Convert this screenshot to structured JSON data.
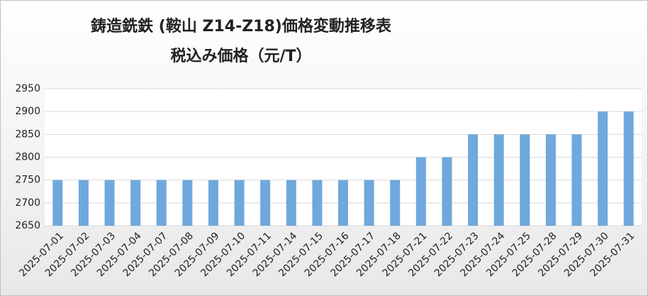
{
  "chart_data": {
    "type": "bar",
    "title": "鋳造銑鉄 (鞍山 Z14-Z18)価格変動推移表",
    "subtitle": "税込み価格（元/T）",
    "categories": [
      "2025-07-01",
      "2025-07-02",
      "2025-07-03",
      "2025-07-04",
      "2025-07-07",
      "2025-07-08",
      "2025-07-09",
      "2025-07-10",
      "2025-07-11",
      "2025-07-14",
      "2025-07-15",
      "2025-07-16",
      "2025-07-17",
      "2025-07-18",
      "2025-07-21",
      "2025-07-22",
      "2025-07-23",
      "2025-07-24",
      "2025-07-25",
      "2025-07-28",
      "2025-07-29",
      "2025-07-30",
      "2025-07-31"
    ],
    "values": [
      2750,
      2750,
      2750,
      2750,
      2750,
      2750,
      2750,
      2750,
      2750,
      2750,
      2750,
      2750,
      2750,
      2750,
      2800,
      2800,
      2850,
      2850,
      2850,
      2850,
      2850,
      2900,
      2900
    ],
    "color": "#6fa8dc",
    "ylim": [
      2650,
      2950
    ],
    "yticks": [
      2650,
      2700,
      2750,
      2800,
      2850,
      2900,
      2950
    ],
    "grid": true
  }
}
